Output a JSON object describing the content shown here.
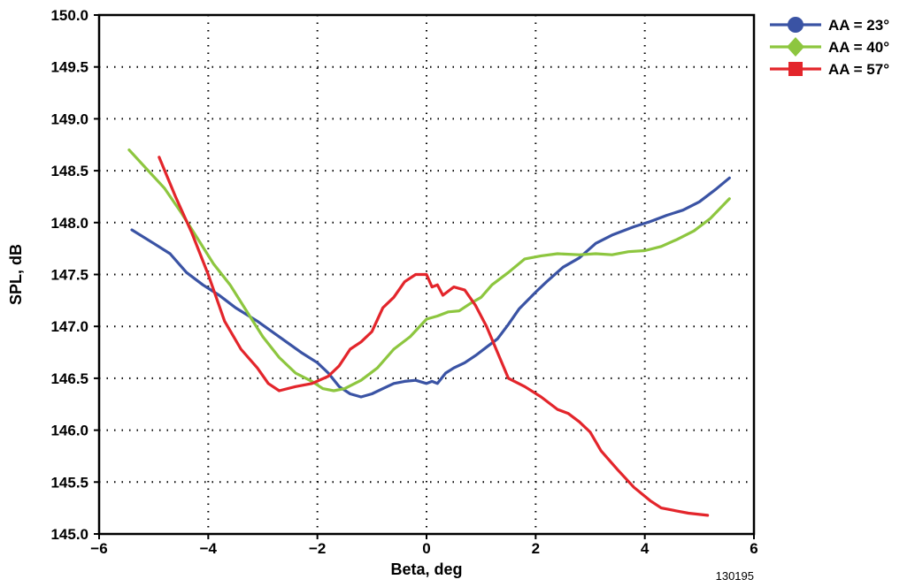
{
  "chart_data": {
    "type": "line",
    "xlabel": "Beta, deg",
    "ylabel": "SPL, dB",
    "xlim": [
      -6,
      6
    ],
    "ylim": [
      145.0,
      150.0
    ],
    "xticks": [
      -6,
      -4,
      -2,
      0,
      2,
      4,
      6
    ],
    "xtick_labels": [
      "−6",
      "−4",
      "−2",
      "0",
      "2",
      "4",
      "6"
    ],
    "yticks": [
      145.0,
      145.5,
      146.0,
      146.5,
      147.0,
      147.5,
      148.0,
      148.5,
      149.0,
      149.5,
      150.0
    ],
    "ytick_labels": [
      "145.0",
      "145.5",
      "146.0",
      "146.5",
      "147.0",
      "147.5",
      "148.0",
      "148.5",
      "149.0",
      "149.5",
      "150.0"
    ],
    "grid": true,
    "legend_position": "top-right outside",
    "figure_id": "130195",
    "series": [
      {
        "name": "AA = 23°",
        "color": "#3a53a4",
        "marker": "circle",
        "points": [
          [
            -5.4,
            147.93
          ],
          [
            -5.0,
            147.8
          ],
          [
            -4.7,
            147.7
          ],
          [
            -4.4,
            147.52
          ],
          [
            -4.1,
            147.4
          ],
          [
            -3.8,
            147.3
          ],
          [
            -3.5,
            147.18
          ],
          [
            -3.1,
            147.05
          ],
          [
            -2.7,
            146.9
          ],
          [
            -2.3,
            146.75
          ],
          [
            -2.0,
            146.65
          ],
          [
            -1.8,
            146.55
          ],
          [
            -1.6,
            146.42
          ],
          [
            -1.4,
            146.35
          ],
          [
            -1.2,
            146.32
          ],
          [
            -1.0,
            146.35
          ],
          [
            -0.8,
            146.4
          ],
          [
            -0.6,
            146.45
          ],
          [
            -0.4,
            146.47
          ],
          [
            -0.2,
            146.48
          ],
          [
            0.0,
            146.45
          ],
          [
            0.1,
            146.47
          ],
          [
            0.2,
            146.45
          ],
          [
            0.35,
            146.55
          ],
          [
            0.5,
            146.6
          ],
          [
            0.7,
            146.65
          ],
          [
            0.9,
            146.72
          ],
          [
            1.1,
            146.8
          ],
          [
            1.3,
            146.88
          ],
          [
            1.5,
            147.02
          ],
          [
            1.7,
            147.17
          ],
          [
            2.0,
            147.33
          ],
          [
            2.2,
            147.43
          ],
          [
            2.5,
            147.57
          ],
          [
            2.8,
            147.66
          ],
          [
            3.1,
            147.8
          ],
          [
            3.4,
            147.88
          ],
          [
            3.8,
            147.96
          ],
          [
            4.1,
            148.01
          ],
          [
            4.4,
            148.07
          ],
          [
            4.7,
            148.12
          ],
          [
            5.0,
            148.2
          ],
          [
            5.3,
            148.32
          ],
          [
            5.55,
            148.43
          ]
        ]
      },
      {
        "name": "AA = 40°",
        "color": "#8dc63f",
        "marker": "diamond",
        "points": [
          [
            -5.45,
            148.7
          ],
          [
            -5.1,
            148.5
          ],
          [
            -4.8,
            148.33
          ],
          [
            -4.5,
            148.1
          ],
          [
            -4.2,
            147.85
          ],
          [
            -3.9,
            147.6
          ],
          [
            -3.6,
            147.4
          ],
          [
            -3.3,
            147.15
          ],
          [
            -3.0,
            146.9
          ],
          [
            -2.7,
            146.7
          ],
          [
            -2.4,
            146.55
          ],
          [
            -2.1,
            146.47
          ],
          [
            -1.9,
            146.4
          ],
          [
            -1.7,
            146.38
          ],
          [
            -1.5,
            146.4
          ],
          [
            -1.2,
            146.48
          ],
          [
            -0.9,
            146.6
          ],
          [
            -0.6,
            146.78
          ],
          [
            -0.3,
            146.9
          ],
          [
            0.0,
            147.07
          ],
          [
            0.2,
            147.1
          ],
          [
            0.4,
            147.14
          ],
          [
            0.6,
            147.15
          ],
          [
            0.8,
            147.22
          ],
          [
            1.0,
            147.28
          ],
          [
            1.2,
            147.4
          ],
          [
            1.5,
            147.52
          ],
          [
            1.8,
            147.65
          ],
          [
            2.1,
            147.68
          ],
          [
            2.4,
            147.7
          ],
          [
            2.8,
            147.69
          ],
          [
            3.1,
            147.7
          ],
          [
            3.4,
            147.69
          ],
          [
            3.7,
            147.72
          ],
          [
            4.0,
            147.73
          ],
          [
            4.3,
            147.77
          ],
          [
            4.6,
            147.84
          ],
          [
            4.9,
            147.92
          ],
          [
            5.2,
            148.04
          ],
          [
            5.55,
            148.23
          ]
        ]
      },
      {
        "name": "AA = 57°",
        "color": "#e3252b",
        "marker": "square",
        "points": [
          [
            -4.9,
            148.63
          ],
          [
            -4.6,
            148.25
          ],
          [
            -4.3,
            147.9
          ],
          [
            -4.0,
            147.5
          ],
          [
            -3.7,
            147.05
          ],
          [
            -3.4,
            146.78
          ],
          [
            -3.1,
            146.6
          ],
          [
            -2.9,
            146.45
          ],
          [
            -2.7,
            146.38
          ],
          [
            -2.4,
            146.42
          ],
          [
            -2.1,
            146.45
          ],
          [
            -1.8,
            146.52
          ],
          [
            -1.6,
            146.62
          ],
          [
            -1.4,
            146.78
          ],
          [
            -1.2,
            146.85
          ],
          [
            -1.0,
            146.95
          ],
          [
            -0.8,
            147.18
          ],
          [
            -0.6,
            147.28
          ],
          [
            -0.4,
            147.43
          ],
          [
            -0.2,
            147.5
          ],
          [
            0.0,
            147.5
          ],
          [
            0.1,
            147.38
          ],
          [
            0.2,
            147.4
          ],
          [
            0.3,
            147.3
          ],
          [
            0.5,
            147.38
          ],
          [
            0.7,
            147.35
          ],
          [
            0.9,
            147.2
          ],
          [
            1.1,
            147.0
          ],
          [
            1.3,
            146.75
          ],
          [
            1.5,
            146.5
          ],
          [
            1.8,
            146.42
          ],
          [
            2.1,
            146.32
          ],
          [
            2.4,
            146.2
          ],
          [
            2.6,
            146.16
          ],
          [
            2.8,
            146.08
          ],
          [
            3.0,
            145.98
          ],
          [
            3.2,
            145.8
          ],
          [
            3.5,
            145.62
          ],
          [
            3.8,
            145.45
          ],
          [
            4.1,
            145.32
          ],
          [
            4.3,
            145.25
          ],
          [
            4.6,
            145.22
          ],
          [
            4.8,
            145.2
          ],
          [
            5.15,
            145.18
          ]
        ]
      }
    ]
  }
}
